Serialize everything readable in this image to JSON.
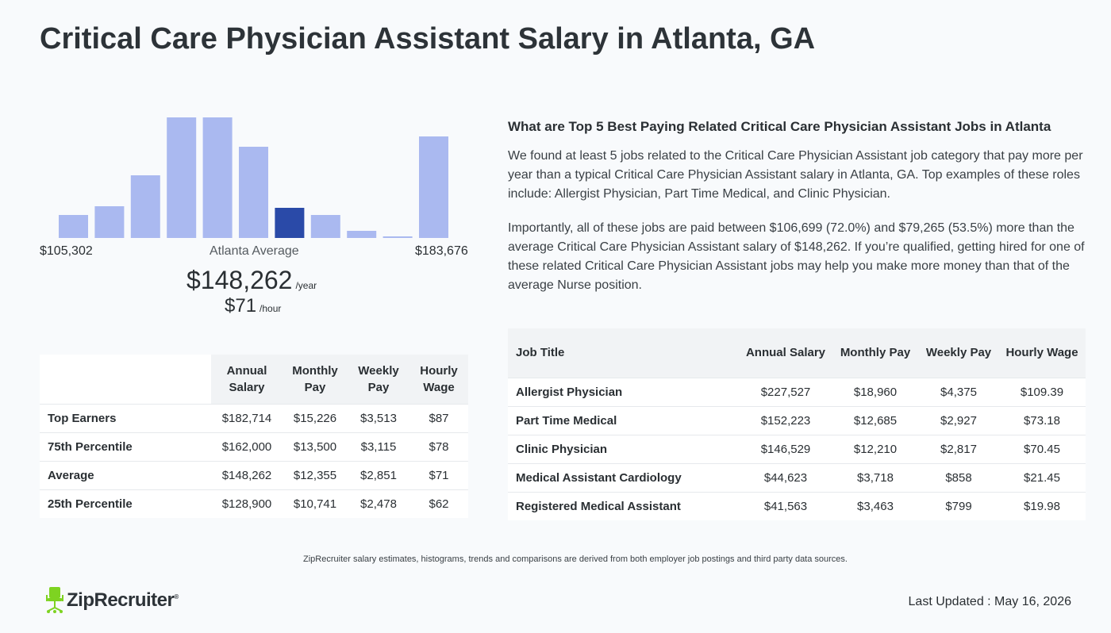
{
  "page": {
    "title": "Critical Care Physician Assistant Salary in Atlanta, GA"
  },
  "histogram": {
    "min_label": "$105,302",
    "avg_label": "Atlanta Average",
    "max_label": "$183,676",
    "annual_value": "$148,262",
    "annual_unit": "/year",
    "hourly_value": "$71",
    "hourly_unit": "/hour",
    "bar_color": "#aab9f0",
    "highlight_color": "#2a4aa8",
    "highlight_index": 6
  },
  "chart_data": {
    "type": "bar",
    "categories": [
      "1",
      "2",
      "3",
      "4",
      "5",
      "6",
      "7",
      "8",
      "9",
      "10",
      "11"
    ],
    "values": [
      29,
      40,
      79,
      152,
      152,
      115,
      38,
      29,
      9,
      2,
      128
    ],
    "title": "",
    "xlabel": "",
    "ylabel": ""
  },
  "percentile_table": {
    "headers": [
      "",
      "Annual Salary",
      "Monthly Pay",
      "Weekly Pay",
      "Hourly Wage"
    ],
    "rows": [
      {
        "label": "Top Earners",
        "annual": "$182,714",
        "monthly": "$15,226",
        "weekly": "$3,513",
        "hourly": "$87"
      },
      {
        "label": "75th Percentile",
        "annual": "$162,000",
        "monthly": "$13,500",
        "weekly": "$3,115",
        "hourly": "$78"
      },
      {
        "label": "Average",
        "annual": "$148,262",
        "monthly": "$12,355",
        "weekly": "$2,851",
        "hourly": "$71"
      },
      {
        "label": "25th Percentile",
        "annual": "$128,900",
        "monthly": "$10,741",
        "weekly": "$2,478",
        "hourly": "$62"
      }
    ]
  },
  "related": {
    "heading": "What are Top 5 Best Paying Related Critical Care Physician Assistant Jobs in Atlanta",
    "paragraph1": "We found at least 5 jobs related to the Critical Care Physician Assistant job category that pay more per year than a typical Critical Care Physician Assistant salary in Atlanta, GA. Top examples of these roles include: Allergist Physician, Part Time Medical, and Clinic Physician.",
    "paragraph2": "Importantly, all of these jobs are paid between $106,699 (72.0%) and $79,265 (53.5%) more than the average Critical Care Physician Assistant salary of $148,262. If you’re qualified, getting hired for one of these related Critical Care Physician Assistant jobs may help you make more money than that of the average Nurse position."
  },
  "jobs_table": {
    "headers": [
      "Job Title",
      "Annual Salary",
      "Monthly Pay",
      "Weekly Pay",
      "Hourly Wage"
    ],
    "rows": [
      {
        "label": "Allergist Physician",
        "annual": "$227,527",
        "monthly": "$18,960",
        "weekly": "$4,375",
        "hourly": "$109.39"
      },
      {
        "label": "Part Time Medical",
        "annual": "$152,223",
        "monthly": "$12,685",
        "weekly": "$2,927",
        "hourly": "$73.18"
      },
      {
        "label": "Clinic Physician",
        "annual": "$146,529",
        "monthly": "$12,210",
        "weekly": "$2,817",
        "hourly": "$70.45"
      },
      {
        "label": "Medical Assistant Cardiology",
        "annual": "$44,623",
        "monthly": "$3,718",
        "weekly": "$858",
        "hourly": "$21.45"
      },
      {
        "label": "Registered Medical Assistant",
        "annual": "$41,563",
        "monthly": "$3,463",
        "weekly": "$799",
        "hourly": "$19.98"
      }
    ]
  },
  "footer": {
    "note": "ZipRecruiter salary estimates, histograms, trends and comparisons are derived from both employer job postings and third party data sources.",
    "logo_text": "ZipRecruiter",
    "logo_reg": "®",
    "logo_color": "#7ed321",
    "updated": "Last Updated : May 16, 2026"
  }
}
